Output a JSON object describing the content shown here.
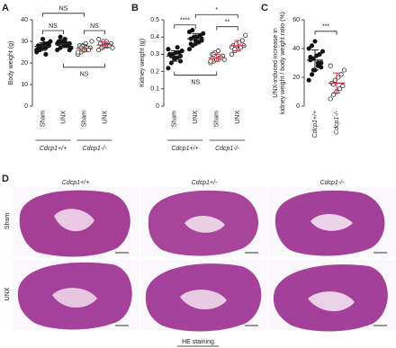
{
  "chart_data": [
    {
      "type": "strip",
      "panel": "A",
      "ylabel": [
        "Body weight (g)"
      ],
      "ylim": [
        0,
        40
      ],
      "yticks": [
        0,
        10,
        20,
        30,
        40
      ],
      "categories": [
        "Sham",
        "UNX",
        "Sham",
        "UNX"
      ],
      "groups": [
        "Cdcp1+/+",
        "Cdcp1-/-"
      ],
      "series": [
        {
          "filled": true,
          "color": "#222222",
          "values": [
            25,
            26,
            27,
            27,
            28,
            28,
            28,
            29,
            29,
            30,
            26,
            27,
            31,
            24,
            29
          ],
          "mean": 27.6,
          "sd": 1.8
        },
        {
          "filled": true,
          "color": "#222222",
          "values": [
            26,
            27,
            28,
            29,
            29,
            30,
            30,
            31,
            28,
            27,
            29,
            32,
            30,
            28,
            26,
            29
          ],
          "mean": 28.7,
          "sd": 1.6
        },
        {
          "filled": false,
          "color": "#d0303a",
          "values": [
            24,
            25,
            26,
            27,
            27,
            28,
            28,
            29,
            26,
            30,
            25,
            27
          ],
          "mean": 26.8,
          "sd": 1.7
        },
        {
          "filled": false,
          "color": "#d0303a",
          "values": [
            26,
            27,
            28,
            28,
            29,
            29,
            30,
            30,
            28,
            27,
            31,
            27
          ],
          "mean": 28.3,
          "sd": 1.4
        }
      ],
      "comparisons": [
        {
          "label": "NS",
          "pair": [
            0,
            1
          ],
          "y": 35,
          "below": false
        },
        {
          "label": "NS",
          "pair": [
            0,
            2
          ],
          "y": 43,
          "below": false
        },
        {
          "label": "NS",
          "pair": [
            2,
            3
          ],
          "y": 35,
          "below": false
        },
        {
          "label": "NS",
          "pair": [
            1,
            3
          ],
          "y": 18,
          "below": true
        }
      ]
    },
    {
      "type": "strip",
      "panel": "B",
      "ylabel": [
        "Kidney weight (g)"
      ],
      "ylim": [
        0,
        0.5
      ],
      "yticks": [
        0,
        0.1,
        0.2,
        0.3,
        0.4,
        0.5
      ],
      "categories": [
        "Sham",
        "UNX",
        "Sham",
        "UNX"
      ],
      "groups": [
        "Cdcp1+/+",
        "Cdcp1-/-"
      ],
      "series": [
        {
          "filled": true,
          "color": "#222222",
          "values": [
            0.22,
            0.25,
            0.27,
            0.28,
            0.29,
            0.3,
            0.3,
            0.31,
            0.31,
            0.32,
            0.33,
            0.29,
            0.28,
            0.34,
            0.26,
            0.3
          ],
          "mean": 0.29,
          "sd": 0.03
        },
        {
          "filled": true,
          "color": "#222222",
          "values": [
            0.33,
            0.35,
            0.36,
            0.37,
            0.38,
            0.39,
            0.4,
            0.4,
            0.41,
            0.42,
            0.43,
            0.44,
            0.38,
            0.37,
            0.39,
            0.36
          ],
          "mean": 0.39,
          "sd": 0.03
        },
        {
          "filled": false,
          "color": "#d0303a",
          "values": [
            0.25,
            0.26,
            0.27,
            0.28,
            0.29,
            0.3,
            0.31,
            0.32,
            0.28,
            0.27,
            0.26,
            0.3
          ],
          "mean": 0.28,
          "sd": 0.02
        },
        {
          "filled": false,
          "color": "#d0303a",
          "values": [
            0.3,
            0.32,
            0.33,
            0.34,
            0.35,
            0.35,
            0.36,
            0.37,
            0.38,
            0.41,
            0.34,
            0.33
          ],
          "mean": 0.35,
          "sd": 0.03
        }
      ],
      "comparisons": [
        {
          "label": "****",
          "pair": [
            0,
            1
          ],
          "y": 0.47,
          "below": false
        },
        {
          "label": "*",
          "pair": [
            1,
            3
          ],
          "y": 0.53,
          "below": false
        },
        {
          "label": "**",
          "pair": [
            2,
            3
          ],
          "y": 0.46,
          "below": false
        },
        {
          "label": "NS",
          "pair": [
            0,
            2
          ],
          "y": 0.18,
          "below": true
        }
      ]
    },
    {
      "type": "strip",
      "panel": "C",
      "ylabel": [
        "UNX-induced increase in",
        "kidney weight / body weight ratio (%)"
      ],
      "ylim": [
        0,
        60
      ],
      "yticks": [
        0,
        20,
        40,
        60
      ],
      "categories": [
        "Cdcp1+/+",
        "Cdcp1-/-"
      ],
      "series": [
        {
          "filled": true,
          "color": "#222222",
          "values": [
            18,
            22,
            25,
            28,
            30,
            32,
            33,
            35,
            36,
            38,
            40,
            42,
            45,
            30,
            27,
            34,
            25
          ],
          "mean": 32,
          "sd": 7
        },
        {
          "filled": false,
          "color": "#d0303a",
          "values": [
            5,
            8,
            10,
            12,
            14,
            16,
            18,
            20,
            22,
            25,
            28,
            15,
            10
          ],
          "mean": 16,
          "sd": 7
        }
      ],
      "comparisons": [
        {
          "label": "***",
          "pair": [
            0,
            1
          ],
          "y": 52,
          "below": false
        }
      ]
    }
  ],
  "histology": {
    "panel": "D",
    "columns": [
      "Cdcp1+/+",
      "Cdcp1+/-",
      "Cdcp1-/-"
    ],
    "rows": [
      "Sham",
      "UNX"
    ],
    "caption": "HE staining"
  }
}
